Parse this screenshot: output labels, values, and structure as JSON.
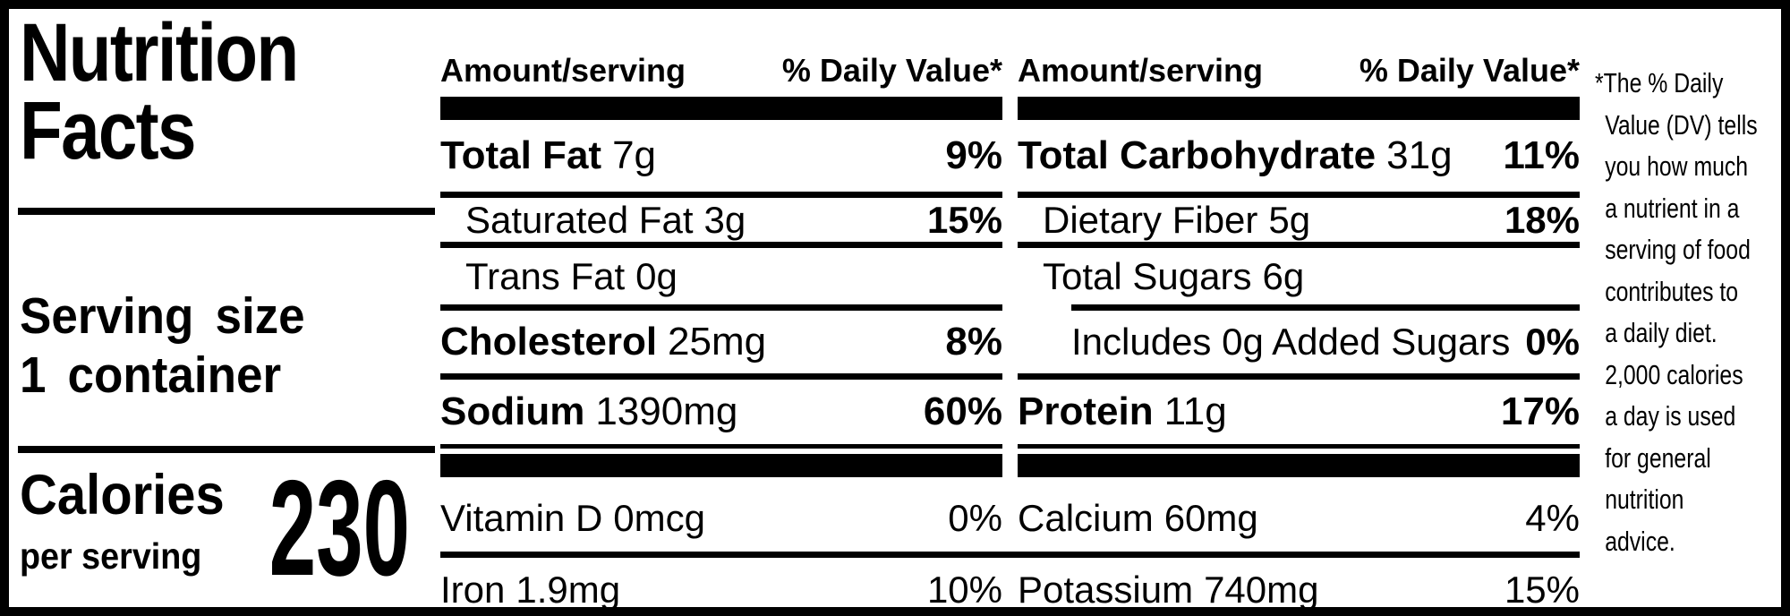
{
  "title": {
    "line1": "Nutrition",
    "line2": "Facts"
  },
  "serving": {
    "label": "Serving size",
    "value": "1 container"
  },
  "calories": {
    "label": "Calories",
    "sublabel": "per serving",
    "value": "230"
  },
  "columns": [
    {
      "header": {
        "amount": "Amount/serving",
        "daily_value": "% Daily Value*"
      },
      "rows": [
        {
          "name": "Total Fat",
          "amount": "7g",
          "dv": "9%"
        },
        {
          "name": "Saturated Fat",
          "amount": "3g",
          "dv": ""
        },
        {
          "name": "Trans Fat",
          "amount": "0g",
          "dv": ""
        },
        {
          "name": "Cholesterol",
          "amount": "25mg",
          "dv": "8%"
        },
        {
          "name": "Sodium",
          "amount": "1390mg",
          "dv": "60%"
        }
      ],
      "saturated_fat_dv": "15%",
      "micronutrients": [
        {
          "name": "Vitamin D",
          "amount": "0mcg",
          "dv": "0%"
        },
        {
          "name": "Iron",
          "amount": "1.9mg",
          "dv": "10%"
        }
      ]
    },
    {
      "header": {
        "amount": "Amount/serving",
        "daily_value": "% Daily Value*"
      },
      "rows": [
        {
          "name": "Total Carbohydrate",
          "amount": "31g",
          "dv": "11%"
        },
        {
          "name": "Dietary Fiber",
          "amount": "5g",
          "dv": "18%"
        },
        {
          "name": "Total Sugars",
          "amount": "6g",
          "dv": ""
        },
        {
          "name": "Includes 0g Added Sugars",
          "amount": "",
          "dv": "0%"
        },
        {
          "name": "Protein",
          "amount": "11g",
          "dv": "17%"
        }
      ],
      "micronutrients": [
        {
          "name": "Calcium",
          "amount": "60mg",
          "dv": "4%"
        },
        {
          "name": "Potassium",
          "amount": "740mg",
          "dv": "15%"
        }
      ]
    }
  ],
  "footnote": "*The % Daily\nValue (DV) tells\nyou how much\na nutrient in a\nserving of food\ncontributes to\na daily diet.\n2,000 calories\na day is used\nfor general\nnutrition\nadvice.",
  "colors": {
    "ink": "#000000",
    "background": "#ffffff"
  }
}
